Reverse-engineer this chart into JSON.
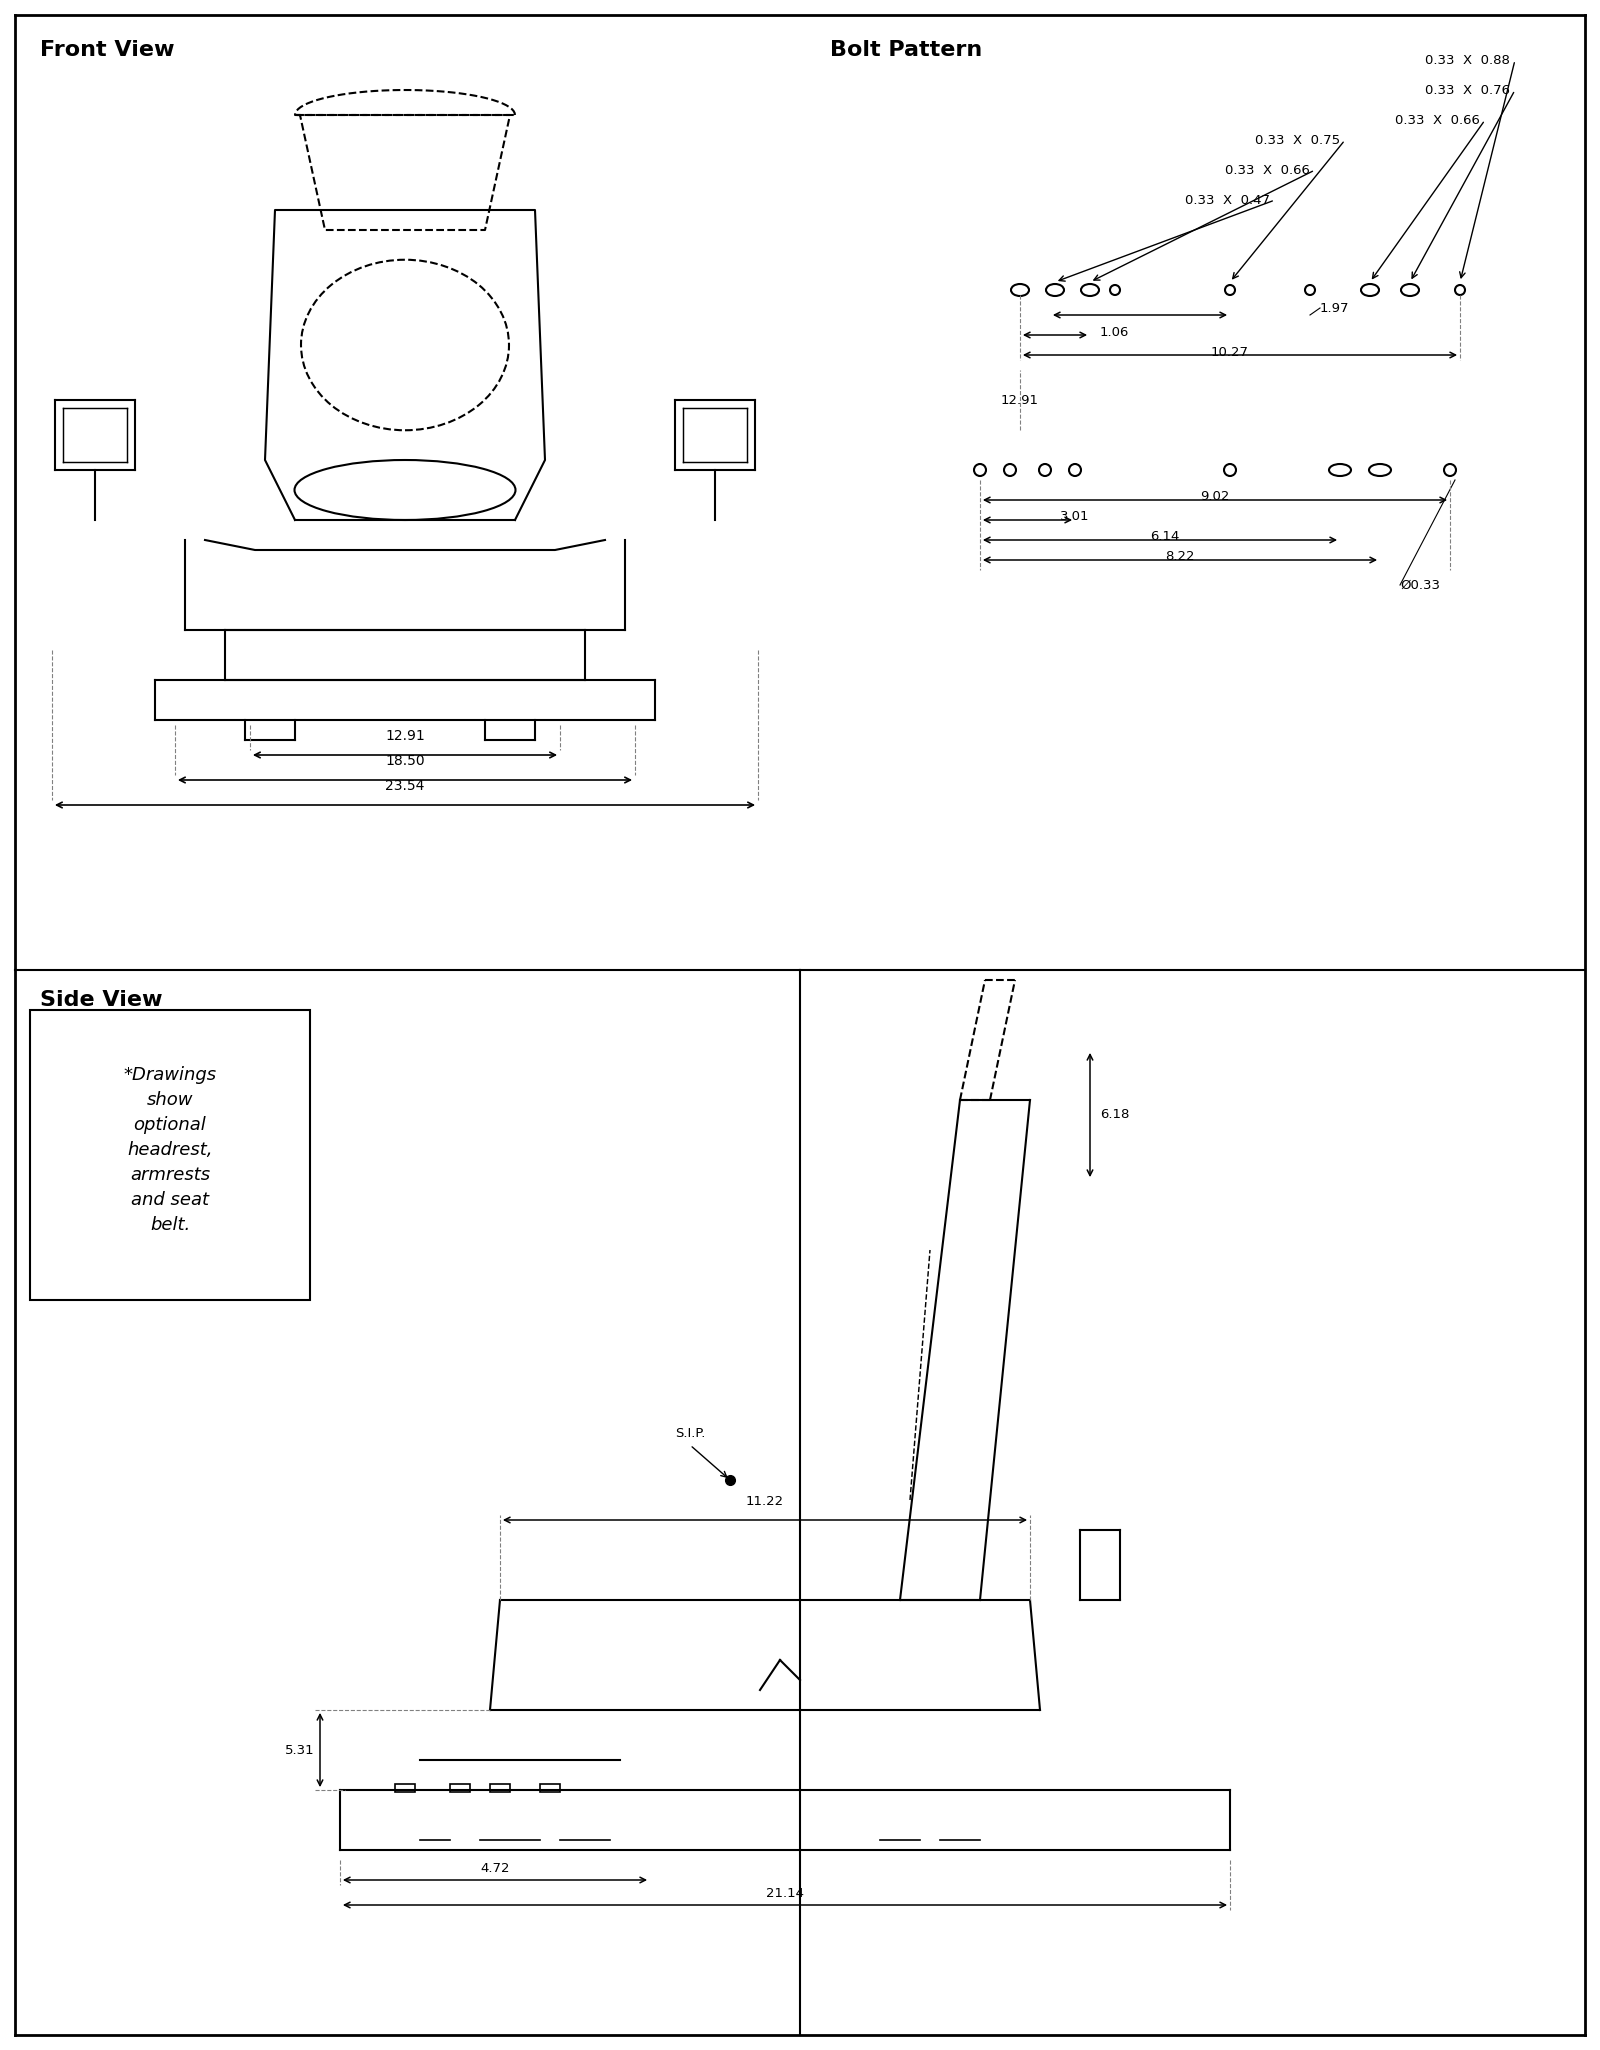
{
  "bg_color": "#ffffff",
  "line_color": "#000000",
  "title_fontsize": 16,
  "label_fontsize": 11,
  "dim_fontsize": 10,
  "sections": {
    "front_view": {
      "title": "Front View",
      "dims": {
        "width_inner": "12.91",
        "width_mid": "18.50",
        "width_outer": "23.54"
      }
    },
    "bolt_pattern": {
      "title": "Bolt Pattern",
      "top_dims": [
        {
          "label": "0.33  X  0.88"
        },
        {
          "label": "0.33  X  0.76"
        },
        {
          "label": "0.33  X  0.66"
        },
        {
          "label": "0.33  X  0.75"
        },
        {
          "label": "0.33  X  0.66"
        },
        {
          "label": "0.33  X  0.47"
        }
      ],
      "dim_1_97": "1.97",
      "dim_1_06": "1.06",
      "dim_10_27": "10.27",
      "dim_12_91": "12.91",
      "dim_9_02": "9.02",
      "dim_3_01": "3.01",
      "dim_6_14": "6.14",
      "dim_8_22": "8.22",
      "dim_dia": "Ø0.33"
    },
    "side_view": {
      "title": "Side View",
      "dim_6_18": "6.18",
      "dim_11_22": "11.22",
      "dim_5_31": "5.31",
      "dim_4_72": "4.72",
      "dim_21_14": "21.14",
      "sip_label": "S.I.P."
    }
  },
  "note_text": "*Drawings\nshow\noptional\nheadrest,\narmrests\nand seat\nbelt."
}
